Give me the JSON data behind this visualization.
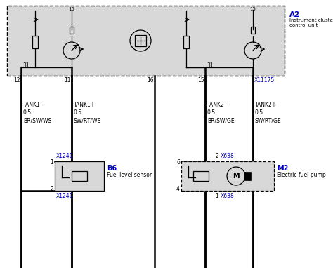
{
  "bg_color": "#ffffff",
  "box_fill": "#d8d8d8",
  "blue_color": "#0000bb",
  "black_color": "#000000",
  "A2_label": "A2",
  "A2_sub": "Instrument cluster\ncontrol unit",
  "B6_label": "B6",
  "B6_sub": "Fuel level sensor",
  "M2_label": "M2",
  "M2_sub": "Electric fuel pump",
  "connector_X11175": "X11175",
  "connector_X1241_top": "X1241",
  "connector_X1241_bot": "X1241",
  "connector_X638_top": "X638",
  "connector_X638_bot": "X638",
  "wire_label_12": "TANK1--\n0.5\nBR/SW/WS",
  "wire_label_11": "TANK1+\n0.5\nSW/RT/WS",
  "wire_label_15": "TANK2--\n0.5\nBR/SW/GE",
  "wire_label_tank2p": "TANK2+\n0.5\nSW/RT/GE",
  "pin_31_left": "31",
  "pin_31_right": "31",
  "pin_12": "12",
  "pin_11": "11",
  "pin_16": "16",
  "pin_15b": "15",
  "pin_b6_1": "1",
  "pin_b6_2": "2",
  "pin_m2_6": "6",
  "pin_m2_4": "4",
  "pin_m2_2": "2",
  "pin_m2_1": "1",
  "label_15_left": "15",
  "label_15_right": "15"
}
